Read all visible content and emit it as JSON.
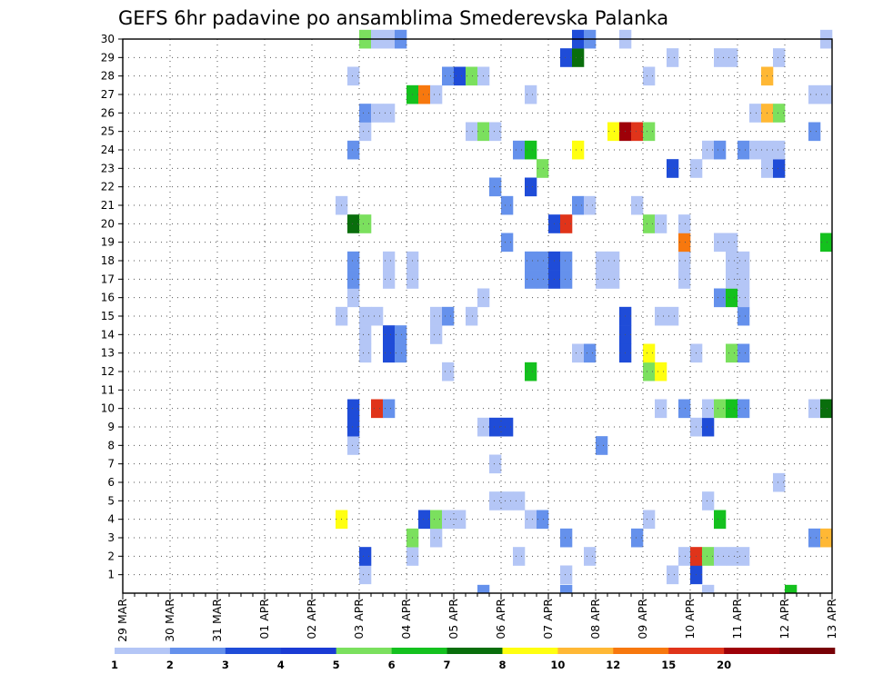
{
  "chart_data": {
    "type": "heatmap",
    "title": "GEFS 6hr padavine po ansamblima Smederevska Palanka",
    "xlabel": "",
    "ylabel": "",
    "x_ticks": [
      "29 MAR",
      "30 MAR",
      "31 MAR",
      "01 APR",
      "02 APR",
      "03 APR",
      "04 APR",
      "05 APR",
      "06 APR",
      "07 APR",
      "08 APR",
      "09 APR",
      "10 APR",
      "11 APR",
      "12 APR",
      "13 APR"
    ],
    "y_ticks": [
      "1",
      "2",
      "3",
      "4",
      "5",
      "6",
      "7",
      "8",
      "9",
      "10",
      "11",
      "12",
      "13",
      "14",
      "15",
      "16",
      "17",
      "18",
      "19",
      "20",
      "21",
      "22",
      "23",
      "24",
      "25",
      "26",
      "27",
      "28",
      "29",
      "30"
    ],
    "ylim": [
      0,
      30
    ],
    "time_steps_per_day": 4,
    "grid": true,
    "legend_levels": [
      "1",
      "2",
      "3",
      "4",
      "5",
      "6",
      "7",
      "8",
      "10",
      "12",
      "15",
      "20"
    ],
    "legend_colors": [
      "#b4c6f6",
      "#6591ec",
      "#1f4cd8",
      "#1a3bd4",
      "#7be05e",
      "#14c11e",
      "#096e0c",
      "#ffff10",
      "#ffb835",
      "#f7780e",
      "#e0341a",
      "#9e0008",
      "#780006"
    ],
    "cells": [
      [
        1,
        20,
        1
      ],
      [
        1,
        37,
        1
      ],
      [
        1,
        46,
        1
      ],
      [
        1,
        48,
        3
      ],
      [
        2,
        20,
        3
      ],
      [
        2,
        24,
        1
      ],
      [
        2,
        33,
        1
      ],
      [
        2,
        39,
        1
      ],
      [
        2,
        47,
        1
      ],
      [
        2,
        48,
        11
      ],
      [
        2,
        49,
        5
      ],
      [
        2,
        50,
        1
      ],
      [
        2,
        51,
        1
      ],
      [
        2,
        52,
        1
      ],
      [
        3,
        24,
        5
      ],
      [
        3,
        26,
        1
      ],
      [
        3,
        37,
        2
      ],
      [
        3,
        43,
        2
      ],
      [
        3,
        58,
        2
      ],
      [
        3,
        59,
        9
      ],
      [
        4,
        18,
        8
      ],
      [
        4,
        25,
        3
      ],
      [
        4,
        26,
        5
      ],
      [
        4,
        27,
        1
      ],
      [
        4,
        28,
        1
      ],
      [
        4,
        34,
        1
      ],
      [
        4,
        35,
        2
      ],
      [
        4,
        44,
        1
      ],
      [
        4,
        50,
        6
      ],
      [
        5,
        31,
        1
      ],
      [
        5,
        32,
        1
      ],
      [
        5,
        33,
        1
      ],
      [
        5,
        49,
        1
      ],
      [
        6,
        55,
        1
      ],
      [
        7,
        31,
        1
      ],
      [
        8,
        19,
        1
      ],
      [
        8,
        40,
        2
      ],
      [
        9,
        19,
        3
      ],
      [
        9,
        30,
        1
      ],
      [
        9,
        31,
        3
      ],
      [
        9,
        32,
        3
      ],
      [
        9,
        48,
        1
      ],
      [
        9,
        49,
        3
      ],
      [
        10,
        19,
        3
      ],
      [
        10,
        21,
        11
      ],
      [
        10,
        22,
        2
      ],
      [
        10,
        45,
        1
      ],
      [
        10,
        47,
        2
      ],
      [
        10,
        49,
        1
      ],
      [
        10,
        50,
        5
      ],
      [
        10,
        51,
        6
      ],
      [
        10,
        52,
        2
      ],
      [
        10,
        58,
        1
      ],
      [
        10,
        59,
        7
      ],
      [
        12,
        27,
        1
      ],
      [
        12,
        34,
        6
      ],
      [
        12,
        44,
        5
      ],
      [
        12,
        45,
        8
      ],
      [
        13,
        20,
        1
      ],
      [
        13,
        22,
        3
      ],
      [
        13,
        23,
        2
      ],
      [
        13,
        38,
        1
      ],
      [
        13,
        39,
        2
      ],
      [
        13,
        42,
        3
      ],
      [
        13,
        44,
        8
      ],
      [
        13,
        48,
        1
      ],
      [
        13,
        51,
        5
      ],
      [
        13,
        52,
        2
      ],
      [
        14,
        20,
        1
      ],
      [
        14,
        22,
        3
      ],
      [
        14,
        23,
        2
      ],
      [
        14,
        26,
        1
      ],
      [
        14,
        42,
        3
      ],
      [
        15,
        18,
        1
      ],
      [
        15,
        20,
        1
      ],
      [
        15,
        21,
        1
      ],
      [
        15,
        26,
        1
      ],
      [
        15,
        27,
        2
      ],
      [
        15,
        29,
        1
      ],
      [
        15,
        42,
        3
      ],
      [
        15,
        45,
        1
      ],
      [
        15,
        46,
        1
      ],
      [
        15,
        52,
        2
      ],
      [
        16,
        19,
        1
      ],
      [
        16,
        30,
        1
      ],
      [
        16,
        50,
        2
      ],
      [
        16,
        51,
        6
      ],
      [
        16,
        52,
        1
      ],
      [
        17,
        19,
        2
      ],
      [
        17,
        22,
        1
      ],
      [
        17,
        24,
        1
      ],
      [
        17,
        34,
        2
      ],
      [
        17,
        35,
        2
      ],
      [
        17,
        36,
        3
      ],
      [
        17,
        37,
        2
      ],
      [
        17,
        40,
        1
      ],
      [
        17,
        41,
        1
      ],
      [
        17,
        47,
        1
      ],
      [
        17,
        51,
        1
      ],
      [
        17,
        52,
        1
      ],
      [
        18,
        19,
        2
      ],
      [
        18,
        22,
        1
      ],
      [
        18,
        24,
        1
      ],
      [
        18,
        34,
        2
      ],
      [
        18,
        35,
        2
      ],
      [
        18,
        36,
        3
      ],
      [
        18,
        37,
        2
      ],
      [
        18,
        40,
        1
      ],
      [
        18,
        41,
        1
      ],
      [
        18,
        47,
        1
      ],
      [
        18,
        51,
        1
      ],
      [
        18,
        52,
        1
      ],
      [
        19,
        32,
        2
      ],
      [
        19,
        47,
        10
      ],
      [
        19,
        50,
        1
      ],
      [
        19,
        51,
        1
      ],
      [
        19,
        59,
        6
      ],
      [
        20,
        19,
        7
      ],
      [
        20,
        20,
        5
      ],
      [
        20,
        36,
        3
      ],
      [
        20,
        37,
        11
      ],
      [
        20,
        44,
        5
      ],
      [
        20,
        45,
        1
      ],
      [
        20,
        47,
        1
      ],
      [
        21,
        18,
        1
      ],
      [
        21,
        32,
        2
      ],
      [
        21,
        38,
        2
      ],
      [
        21,
        39,
        1
      ],
      [
        21,
        43,
        1
      ],
      [
        22,
        31,
        2
      ],
      [
        22,
        34,
        3
      ],
      [
        23,
        35,
        5
      ],
      [
        23,
        46,
        3
      ],
      [
        23,
        48,
        1
      ],
      [
        23,
        54,
        1
      ],
      [
        23,
        55,
        3
      ],
      [
        24,
        19,
        2
      ],
      [
        24,
        33,
        2
      ],
      [
        24,
        34,
        6
      ],
      [
        24,
        38,
        8
      ],
      [
        24,
        49,
        1
      ],
      [
        24,
        50,
        2
      ],
      [
        24,
        52,
        2
      ],
      [
        24,
        53,
        1
      ],
      [
        24,
        54,
        1
      ],
      [
        24,
        55,
        1
      ],
      [
        25,
        20,
        1
      ],
      [
        25,
        29,
        1
      ],
      [
        25,
        30,
        5
      ],
      [
        25,
        31,
        1
      ],
      [
        25,
        41,
        8
      ],
      [
        25,
        42,
        12
      ],
      [
        25,
        43,
        11
      ],
      [
        25,
        44,
        5
      ],
      [
        25,
        58,
        2
      ],
      [
        26,
        20,
        2
      ],
      [
        26,
        21,
        1
      ],
      [
        26,
        22,
        1
      ],
      [
        26,
        53,
        1
      ],
      [
        26,
        54,
        9
      ],
      [
        26,
        55,
        5
      ],
      [
        27,
        24,
        6
      ],
      [
        27,
        25,
        10
      ],
      [
        27,
        26,
        1
      ],
      [
        27,
        34,
        1
      ],
      [
        27,
        58,
        1
      ],
      [
        27,
        59,
        1
      ],
      [
        28,
        19,
        1
      ],
      [
        28,
        27,
        2
      ],
      [
        28,
        28,
        3
      ],
      [
        28,
        29,
        5
      ],
      [
        28,
        30,
        1
      ],
      [
        28,
        44,
        1
      ],
      [
        28,
        54,
        9
      ],
      [
        29,
        37,
        3
      ],
      [
        29,
        38,
        7
      ],
      [
        29,
        46,
        1
      ],
      [
        29,
        50,
        1
      ],
      [
        29,
        51,
        1
      ],
      [
        29,
        55,
        1
      ],
      [
        30,
        20,
        5
      ],
      [
        30,
        21,
        1
      ],
      [
        30,
        22,
        1
      ],
      [
        30,
        23,
        2
      ],
      [
        30,
        38,
        3
      ],
      [
        30,
        39,
        2
      ],
      [
        30,
        42,
        1
      ],
      [
        30,
        59,
        1
      ],
      [
        0,
        30,
        2
      ],
      [
        0,
        37,
        2
      ],
      [
        0,
        49,
        1
      ],
      [
        0,
        56,
        6
      ]
    ]
  }
}
